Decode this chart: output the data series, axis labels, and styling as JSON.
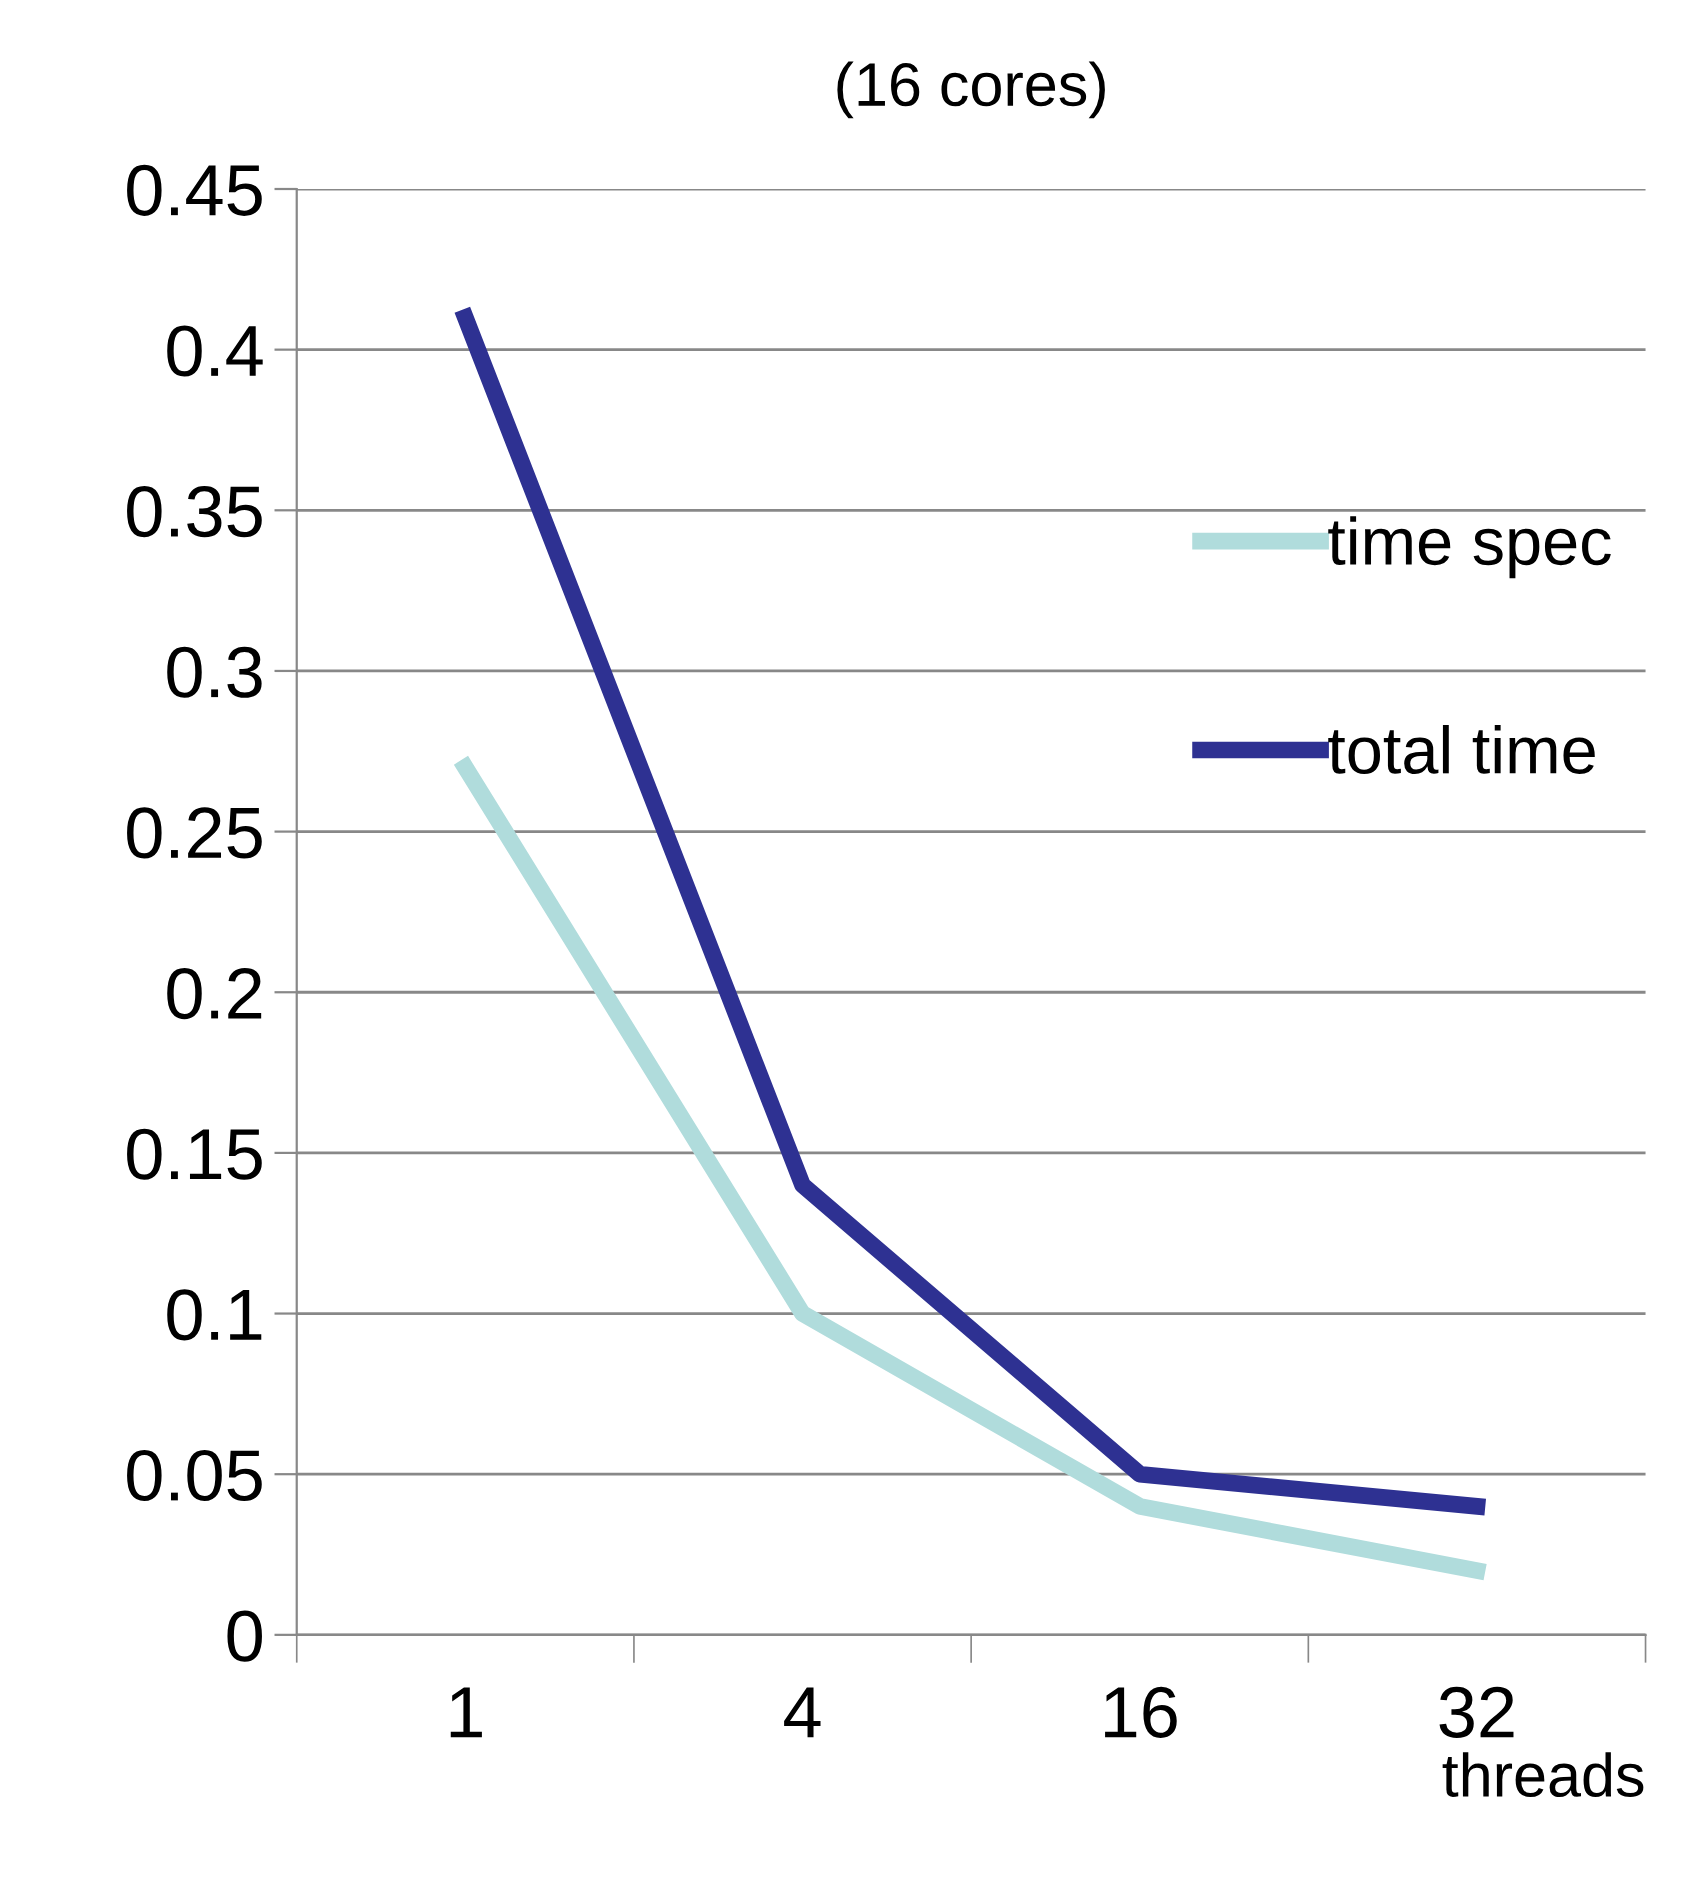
{
  "chart_data": {
    "type": "line",
    "title": "(16 cores)",
    "xlabel": "threads",
    "categories": [
      "1",
      "4",
      "16",
      "32"
    ],
    "series": [
      {
        "name": "time spec",
        "color": "#b0dcdc",
        "values": [
          0.27,
          0.1,
          0.04,
          0.02
        ]
      },
      {
        "name": "total time",
        "color": "#2e3192",
        "values": [
          0.41,
          0.14,
          0.05,
          0.04
        ]
      }
    ],
    "ylim": [
      0,
      0.45
    ],
    "yticks": [
      0,
      0.05,
      0.1,
      0.15,
      0.2,
      0.25,
      0.3,
      0.35,
      0.4,
      0.45
    ],
    "grid": "y",
    "legend": "right",
    "marker": "none",
    "line_style": "solid"
  }
}
